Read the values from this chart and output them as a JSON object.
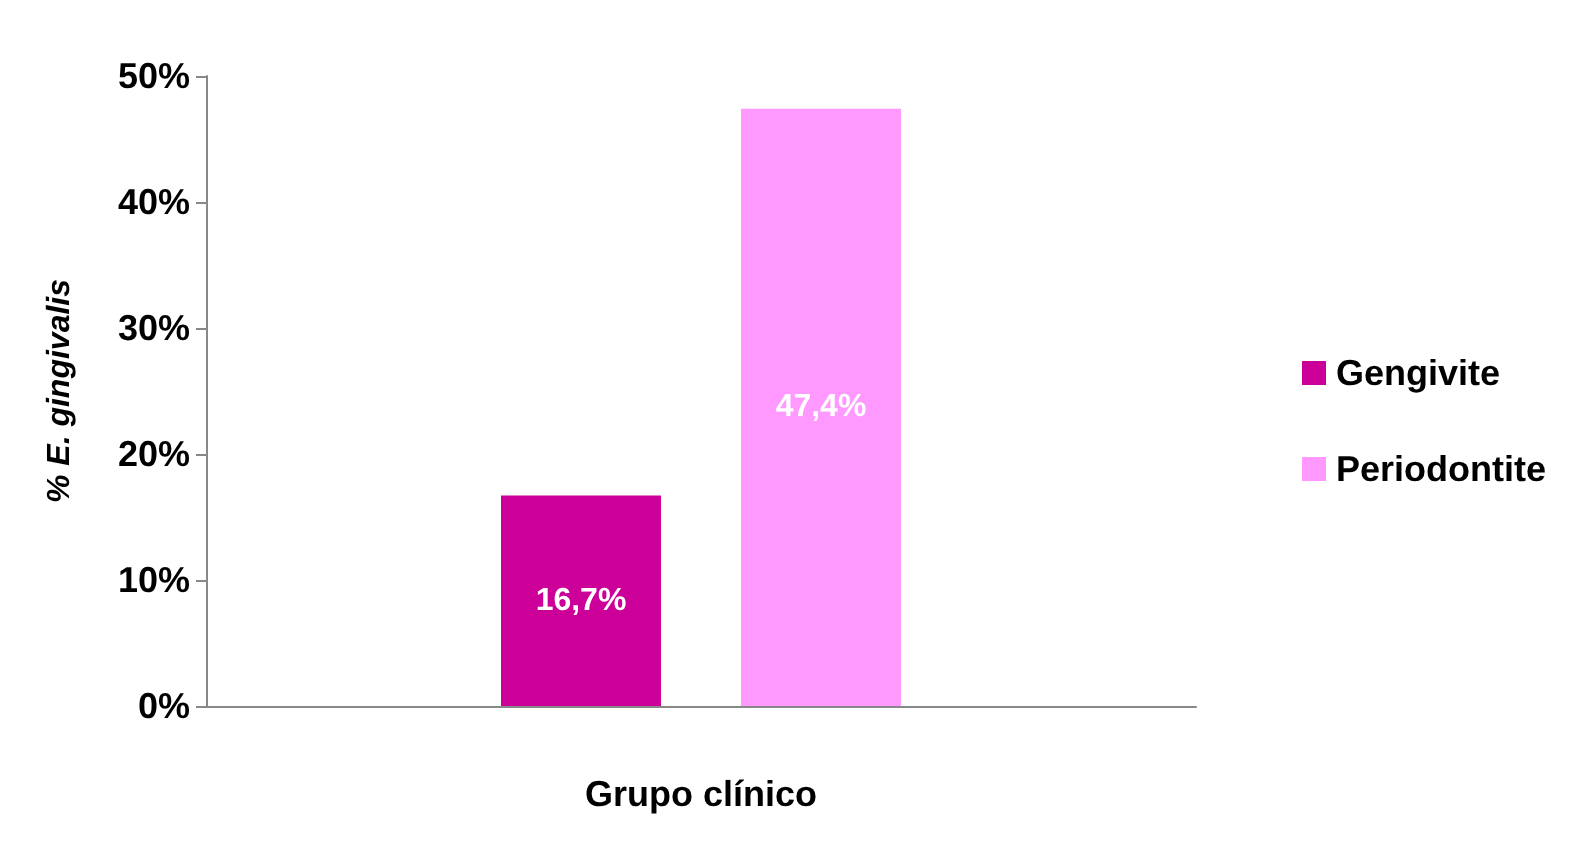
{
  "chart_data": {
    "type": "bar",
    "xlabel": "Grupo clínico",
    "ylabel": "% E. gingivalis",
    "categories": [
      null
    ],
    "series": [
      {
        "name": "Gengivite",
        "color": "#cc0099",
        "values": [
          16.7
        ],
        "value_labels": [
          "16,7%"
        ]
      },
      {
        "name": "Periodontite",
        "color": "#ff99ff",
        "values": [
          47.4
        ],
        "value_labels": [
          "47,4%"
        ]
      }
    ],
    "ylim": [
      0,
      50
    ],
    "yticks": [
      {
        "value": 0,
        "label": "0%"
      },
      {
        "value": 10,
        "label": "10%"
      },
      {
        "value": 20,
        "label": "20%"
      },
      {
        "value": 30,
        "label": "30%"
      },
      {
        "value": 40,
        "label": "40%"
      },
      {
        "value": 50,
        "label": "50%"
      }
    ],
    "grid": false,
    "legend": "right"
  }
}
